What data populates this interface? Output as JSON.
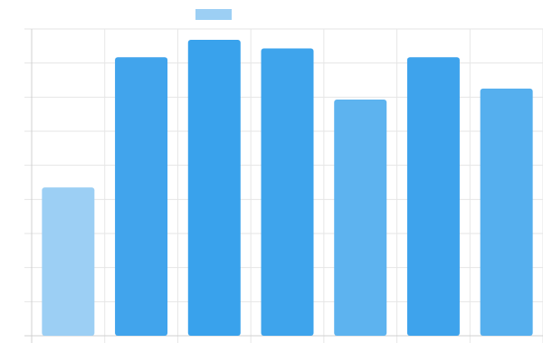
{
  "chart_data": {
    "type": "bar",
    "categories": [
      "",
      "",
      "",
      "",
      "",
      "",
      ""
    ],
    "series": [
      {
        "values": [
          4.35,
          8.17,
          8.68,
          8.43,
          6.93,
          8.17,
          7.25
        ]
      }
    ],
    "ylim": [
      0,
      9
    ],
    "grid": true,
    "legend": "top",
    "bar_colors": [
      "#9ccff4",
      "#41a4ec",
      "#39a2ec",
      "#3ea4ec",
      "#5db3ef",
      "#3ea3ec",
      "#55afee"
    ],
    "legend_swatch_color": "#9ccff4",
    "grid_color": "#e6e6e6",
    "axis_color": "#d0d0d0"
  }
}
